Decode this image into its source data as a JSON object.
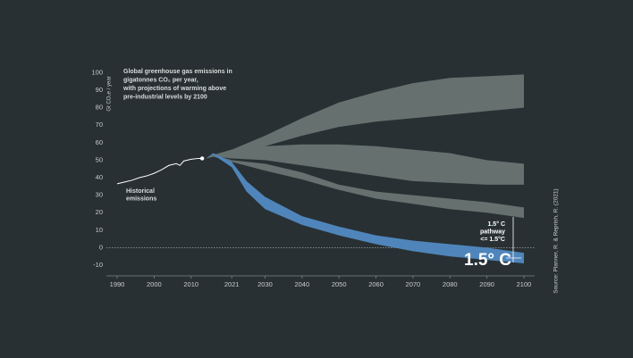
{
  "chart_data": {
    "type": "band",
    "title": [
      "Global greenhouse gas emissions in",
      "gigatonnes  CO₂ per year,",
      "with projections of warming above",
      "pre-industrial levels by 2100"
    ],
    "y_label": "Gt CO₂e / year",
    "source": "Source: Planner, R. & Reprish, R. (2021)",
    "historical_label": [
      "Historical",
      "emissions"
    ],
    "pathway_label": [
      "1.5° C",
      "pathway",
      "<= 1.5°C"
    ],
    "pathway_big_label": "1.5° C",
    "xlim": [
      1987,
      2103
    ],
    "ylim": [
      -10,
      100
    ],
    "xticks": [
      1990,
      2000,
      2010,
      2021,
      2030,
      2040,
      2050,
      2060,
      2070,
      2080,
      2090,
      2100
    ],
    "yticks": [
      -10,
      0,
      10,
      20,
      30,
      40,
      50,
      60,
      70,
      80,
      90,
      100
    ],
    "history": {
      "color": "#ffffff",
      "x": [
        1990,
        1992,
        1994,
        1996,
        1998,
        2000,
        2002,
        2004,
        2006,
        2007,
        2008,
        2010,
        2012,
        2013
      ],
      "values": [
        36.5,
        37.5,
        38.5,
        40,
        41,
        42.5,
        44.5,
        47,
        48,
        47,
        49.5,
        50.5,
        51,
        51
      ]
    },
    "bands": [
      {
        "color": "#66706f",
        "x": [
          2014,
          2016,
          2021,
          2030,
          2040,
          2050,
          2060,
          2070,
          2080,
          2090,
          2100
        ],
        "upper": [
          51,
          53,
          56,
          64,
          74,
          83,
          89,
          94,
          97,
          98,
          99
        ],
        "lower": [
          51,
          52,
          53,
          58,
          64,
          69,
          72,
          74,
          76,
          78,
          80
        ]
      },
      {
        "color": "#66706f",
        "x": [
          2014,
          2016,
          2021,
          2030,
          2040,
          2050,
          2060,
          2070,
          2080,
          2090,
          2100
        ],
        "upper": [
          51,
          53,
          56,
          58,
          59,
          59,
          58,
          56,
          54,
          50,
          48
        ],
        "lower": [
          51,
          52,
          51,
          50,
          47,
          44,
          41,
          38,
          37,
          36,
          36
        ]
      },
      {
        "color": "#66706f",
        "x": [
          2014,
          2016,
          2021,
          2030,
          2040,
          2050,
          2060,
          2070,
          2080,
          2090,
          2100
        ],
        "upper": [
          51,
          53,
          50,
          48,
          43,
          36,
          32,
          30,
          28,
          26,
          23
        ],
        "lower": [
          51,
          52,
          49,
          44,
          39,
          33,
          28,
          25,
          22,
          20,
          17
        ]
      },
      {
        "color": "#4f85ba",
        "x": [
          2014,
          2016,
          2021,
          2025,
          2030,
          2040,
          2050,
          2060,
          2070,
          2080,
          2090,
          2100
        ],
        "upper": [
          51,
          54,
          49,
          38,
          29,
          18,
          12,
          7,
          4,
          2,
          0,
          -3
        ],
        "lower": [
          51,
          53,
          46,
          32,
          22,
          13,
          7,
          2,
          -2,
          -5,
          -7,
          -9
        ]
      }
    ]
  }
}
